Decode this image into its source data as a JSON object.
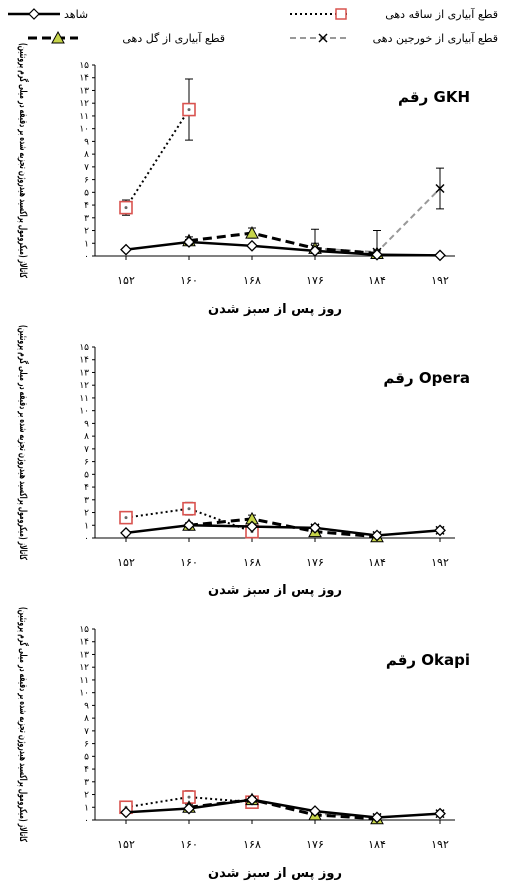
{
  "legend": {
    "control": "شاهد",
    "stem": "قطع آبیاری از ساقه دهی",
    "flowering": "قطع آبیاری از گل دهی",
    "podding": "قطع آبیاری از خورجین دهی"
  },
  "styles": {
    "control": {
      "color": "#000000",
      "marker": "diamond-open"
    },
    "stem": {
      "color": "#000000",
      "marker": "square-red",
      "marker_color": "#d9534f"
    },
    "flowering": {
      "color": "#000000",
      "marker": "triangle-filled",
      "marker_color": "#c6d44a"
    },
    "podding": {
      "color": "#999999",
      "marker": "x"
    }
  },
  "chart_data": [
    {
      "type": "line",
      "title": "رقم GKH",
      "xlabel": "روز پس از سبز شدن",
      "ylabel": "کاتالاز (میکرومول پراکسید هیدروژن تجزیه شده بر دقیقه در میلی گرم پروتئین)",
      "categories": [
        "۱۵۲",
        "۱۶۰",
        "۱۶۸",
        "۱۷۶",
        "۱۸۴",
        "۱۹۲"
      ],
      "yticks": [
        "۰",
        "۱",
        "۲",
        "۳",
        "۴",
        "۵",
        "۶",
        "۷",
        "۸",
        "۹",
        "۱۰",
        "۱۱",
        "۱۲",
        "۱۳",
        "۱۴",
        "۱۵"
      ],
      "ylim": [
        0,
        15
      ],
      "series": [
        {
          "key": "control",
          "values": [
            0.5,
            1.1,
            0.8,
            0.4,
            0.1,
            0.05
          ],
          "errors": [
            0.1,
            0.2,
            0.1,
            0.1,
            0.05,
            0.05
          ]
        },
        {
          "key": "stem",
          "values": [
            3.8,
            11.5,
            null,
            null,
            null,
            null
          ],
          "errors": [
            0.6,
            2.4,
            null,
            null,
            null,
            null
          ]
        },
        {
          "key": "flowering",
          "values": [
            null,
            1.2,
            1.8,
            0.6,
            0.2,
            null
          ],
          "errors": [
            null,
            0.3,
            0.4,
            0.4,
            0.2,
            null
          ]
        },
        {
          "key": "podding",
          "values": [
            null,
            null,
            null,
            0.6,
            0.3,
            5.3
          ],
          "errors": [
            null,
            null,
            null,
            1.5,
            1.7,
            1.6
          ]
        }
      ]
    },
    {
      "type": "line",
      "title": "رقم Opera",
      "xlabel": "روز پس از سبز شدن",
      "ylabel": "کاتالاز (میکرومول پراکسید هیدروژن تجزیه شده بر دقیقه در میلی گرم پروتئین)",
      "categories": [
        "۱۵۲",
        "۱۶۰",
        "۱۶۸",
        "۱۷۶",
        "۱۸۴",
        "۱۹۲"
      ],
      "yticks": [
        "۰",
        "۱",
        "۲",
        "۳",
        "۴",
        "۵",
        "۶",
        "۷",
        "۸",
        "۹",
        "۱۰",
        "۱۱",
        "۱۲",
        "۱۳",
        "۱۴",
        "۱۵"
      ],
      "ylim": [
        0,
        15
      ],
      "series": [
        {
          "key": "control",
          "values": [
            0.4,
            1.0,
            0.9,
            0.8,
            0.2,
            0.6
          ],
          "errors": [
            0.1,
            0.1,
            0.1,
            0.1,
            0.1,
            0.1
          ]
        },
        {
          "key": "stem",
          "values": [
            1.6,
            2.3,
            0.5,
            null,
            null,
            null
          ],
          "errors": [
            0.2,
            0.5,
            0.2,
            null,
            null,
            null
          ]
        },
        {
          "key": "flowering",
          "values": [
            null,
            1.0,
            1.5,
            0.5,
            0.1,
            null
          ],
          "errors": [
            null,
            0.2,
            0.3,
            0.2,
            0.1,
            null
          ]
        },
        {
          "key": "podding",
          "values": [
            null,
            null,
            null,
            0.8,
            0.2,
            0.6
          ],
          "errors": [
            null,
            null,
            null,
            0.2,
            0.1,
            0.1
          ]
        }
      ]
    },
    {
      "type": "line",
      "title": "رقم Okapi",
      "xlabel": "روز پس از سبز شدن",
      "ylabel": "کاتالاز (میکرومول پراکسید هیدروژن تجزیه شده بر دقیقه در میلی گرم پروتئین)",
      "categories": [
        "۱۵۲",
        "۱۶۰",
        "۱۶۸",
        "۱۷۶",
        "۱۸۴",
        "۱۹۲"
      ],
      "yticks": [
        "۰",
        "۱",
        "۲",
        "۳",
        "۴",
        "۵",
        "۶",
        "۷",
        "۸",
        "۹",
        "۱۰",
        "۱۱",
        "۱۲",
        "۱۳",
        "۱۴",
        "۱۵"
      ],
      "ylim": [
        0,
        15
      ],
      "series": [
        {
          "key": "control",
          "values": [
            0.6,
            0.9,
            1.6,
            0.7,
            0.2,
            0.5
          ],
          "errors": [
            0.1,
            0.1,
            0.2,
            0.1,
            0.1,
            0.1
          ]
        },
        {
          "key": "stem",
          "values": [
            1.0,
            1.8,
            1.4,
            null,
            null,
            null
          ],
          "errors": [
            0.2,
            0.5,
            0.3,
            null,
            null,
            null
          ]
        },
        {
          "key": "flowering",
          "values": [
            null,
            1.0,
            1.6,
            0.4,
            0.1,
            null
          ],
          "errors": [
            null,
            0.2,
            0.2,
            0.1,
            0.1,
            null
          ]
        },
        {
          "key": "podding",
          "values": [
            null,
            null,
            null,
            0.5,
            0.2,
            0.5
          ],
          "errors": [
            null,
            null,
            null,
            0.1,
            0.1,
            0.1
          ]
        }
      ]
    }
  ]
}
